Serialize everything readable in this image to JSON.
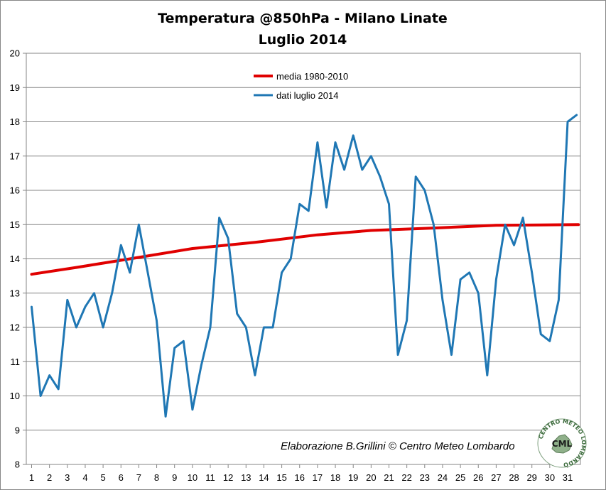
{
  "chart_data": {
    "type": "line",
    "title": "Temperatura @850hPa - Milano Linate",
    "subtitle": "Luglio 2014",
    "xlabel": "",
    "ylabel": "",
    "ylim": [
      8,
      20
    ],
    "yticks": [
      "8",
      "9",
      "10",
      "11",
      "12",
      "13",
      "14",
      "15",
      "16",
      "17",
      "18",
      "19",
      "20"
    ],
    "xlim": [
      1,
      31.6
    ],
    "xticks": [
      "1",
      "2",
      "3",
      "4",
      "5",
      "6",
      "7",
      "8",
      "9",
      "10",
      "11",
      "12",
      "13",
      "14",
      "15",
      "16",
      "17",
      "18",
      "19",
      "20",
      "21",
      "22",
      "23",
      "24",
      "25",
      "26",
      "27",
      "28",
      "29",
      "30",
      "31"
    ],
    "grid": "horizontal",
    "legend_position": "top-center",
    "series": [
      {
        "name": "media 1980-2010",
        "color": "#e00000",
        "x": [
          1,
          3.5,
          6.5,
          10,
          13.5,
          17,
          20,
          23.5,
          27,
          31.6
        ],
        "values": [
          13.55,
          13.75,
          14.0,
          14.3,
          14.48,
          14.7,
          14.83,
          14.9,
          14.98,
          15.0
        ]
      },
      {
        "name": "dati luglio 2014",
        "color": "#1f77b4",
        "x": [
          1,
          1.5,
          2,
          2.5,
          3,
          3.5,
          4,
          4.5,
          5,
          5.5,
          6,
          6.5,
          7,
          7.5,
          8,
          8.5,
          9,
          9.5,
          10,
          10.5,
          11,
          11.5,
          12,
          12.5,
          13,
          13.5,
          14,
          14.5,
          15,
          15.5,
          16,
          16.5,
          17,
          17.5,
          18,
          18.5,
          19,
          19.5,
          20,
          20.5,
          21,
          21.5,
          22,
          22.5,
          23,
          23.5,
          24,
          24.5,
          25,
          25.5,
          26,
          26.5,
          27,
          27.5,
          28,
          28.5,
          29,
          29.5,
          30,
          30.5,
          31,
          31.5
        ],
        "values": [
          12.6,
          10.0,
          10.6,
          10.2,
          12.8,
          12.0,
          12.6,
          13.0,
          12.0,
          13.0,
          14.4,
          13.6,
          15.0,
          13.6,
          12.2,
          9.4,
          11.4,
          11.6,
          9.6,
          10.9,
          12.0,
          15.2,
          14.6,
          12.4,
          12.0,
          10.6,
          12.0,
          12.0,
          13.6,
          14.0,
          15.6,
          15.4,
          17.4,
          15.5,
          17.4,
          16.6,
          17.6,
          16.6,
          17.0,
          16.4,
          15.6,
          11.2,
          12.2,
          16.4,
          16.0,
          15.0,
          12.8,
          11.2,
          13.4,
          13.6,
          13.0,
          10.6,
          13.4,
          15.0,
          14.4,
          15.2,
          13.6,
          11.8,
          11.6,
          12.8,
          18.0,
          18.2
        ]
      }
    ]
  },
  "credit": {
    "text": "Elaborazione B.Grillini  © Centro Meteo Lombardo"
  },
  "logo": {
    "ring_text": "CENTRO METEO LOMBARDO",
    "center_text": "CML"
  },
  "colors": {
    "plot_border": "#868686",
    "grid": "#868686"
  }
}
